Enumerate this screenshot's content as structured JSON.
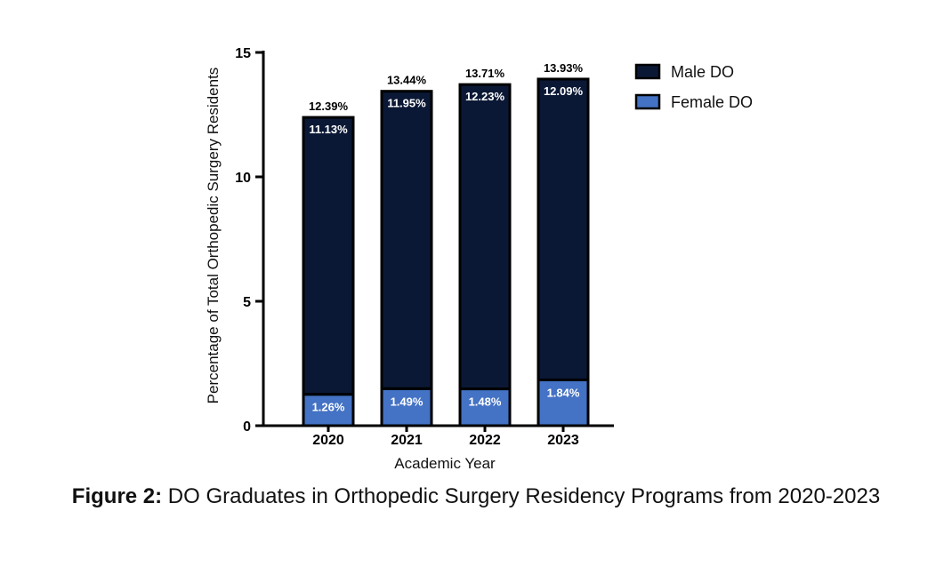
{
  "caption": {
    "label": "Figure 2:",
    "text": " DO Graduates in Orthopedic Surgery Residency Programs from 2020-2023"
  },
  "chart_data": {
    "type": "bar",
    "stacked": true,
    "categories": [
      "2020",
      "2021",
      "2022",
      "2023"
    ],
    "series": [
      {
        "name": "Female DO",
        "color": "#4472c4",
        "values": [
          1.26,
          1.49,
          1.48,
          1.84
        ],
        "labels": [
          "1.26%",
          "1.49%",
          "1.48%",
          "1.84%"
        ]
      },
      {
        "name": "Male DO",
        "color": "#0b1835",
        "values": [
          11.13,
          11.95,
          12.23,
          12.09
        ],
        "labels": [
          "11.13%",
          "11.95%",
          "12.23%",
          "12.09%"
        ]
      }
    ],
    "totals": [
      12.39,
      13.44,
      13.71,
      13.93
    ],
    "total_labels": [
      "12.39%",
      "13.44%",
      "13.71%",
      "13.93%"
    ],
    "legend": [
      "Male DO",
      "Female DO"
    ],
    "legend_placement": "top-right",
    "xlabel": "Academic Year",
    "ylabel": "Percentage of Total Orthopedic Surgery Residents",
    "ylim": [
      0,
      15
    ],
    "yticks": [
      0,
      5,
      10,
      15
    ],
    "grid": false
  }
}
